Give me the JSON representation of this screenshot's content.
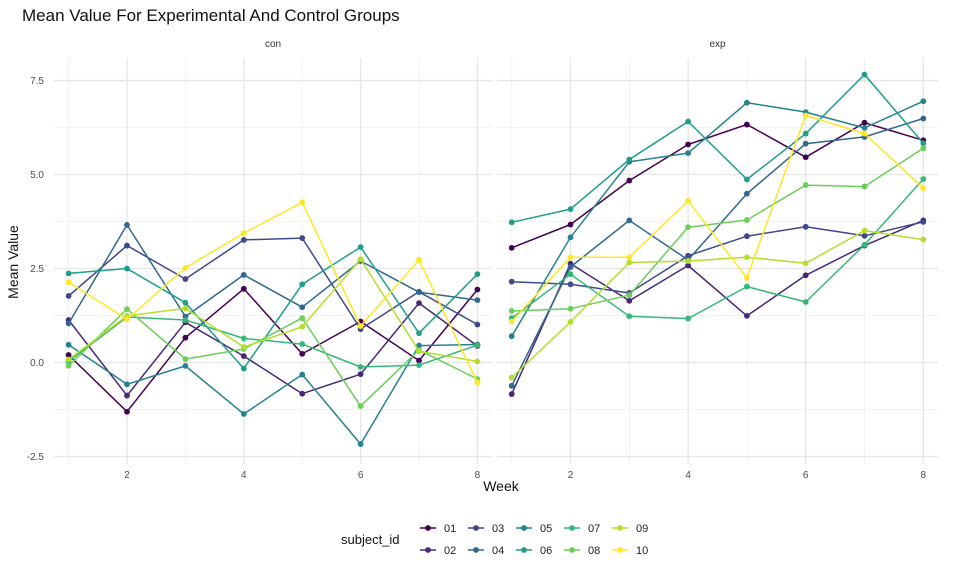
{
  "chart_data": {
    "type": "line",
    "title": "Mean Value For Experimental And Control Groups",
    "xlabel": "Week",
    "ylabel": "Mean Value",
    "xlim": [
      0.75,
      8.25
    ],
    "ylim": [
      -2.7,
      8.1
    ],
    "x_ticks": [
      2,
      4,
      6,
      8
    ],
    "y_ticks": [
      -2.5,
      0.0,
      2.5,
      5.0,
      7.5
    ],
    "y_tick_labels": [
      "-2.5",
      "0.0",
      "2.5",
      "5.0",
      "7.5"
    ],
    "x": [
      1,
      2,
      3,
      4,
      5,
      6,
      7,
      8
    ],
    "grid": true,
    "legend_title": "subject_id",
    "legend_position": "bottom",
    "facets": [
      {
        "label": "con",
        "series": [
          {
            "name": "01",
            "color": "#440154",
            "values": [
              0.2,
              -1.31,
              0.66,
              1.96,
              0.23,
              1.09,
              0.05,
              1.94
            ]
          },
          {
            "name": "02",
            "color": "#482878",
            "values": [
              1.13,
              -0.88,
              1.07,
              0.17,
              -0.83,
              -0.31,
              1.58,
              0.44
            ]
          },
          {
            "name": "03",
            "color": "#3E4A89",
            "values": [
              1.77,
              3.11,
              2.22,
              3.26,
              3.31,
              0.89,
              1.88,
              1.01
            ]
          },
          {
            "name": "04",
            "color": "#31688E",
            "values": [
              1.04,
              3.66,
              1.22,
              2.33,
              1.47,
              2.7,
              1.87,
              1.66
            ]
          },
          {
            "name": "05",
            "color": "#26828E",
            "values": [
              0.47,
              -0.58,
              -0.09,
              -1.37,
              -0.32,
              -2.17,
              0.45,
              0.48
            ]
          },
          {
            "name": "06",
            "color": "#1F9E89",
            "values": [
              2.37,
              2.5,
              1.59,
              -0.16,
              2.08,
              3.07,
              0.78,
              2.35
            ]
          },
          {
            "name": "07",
            "color": "#35B779",
            "values": [
              0.03,
              1.21,
              1.13,
              0.64,
              0.49,
              -0.12,
              -0.07,
              0.46
            ]
          },
          {
            "name": "08",
            "color": "#6DCD59",
            "values": [
              -0.09,
              1.42,
              0.09,
              0.36,
              1.18,
              -1.16,
              0.33,
              -0.44
            ]
          },
          {
            "name": "09",
            "color": "#B4DE2C",
            "values": [
              0.08,
              1.24,
              1.44,
              0.41,
              0.95,
              2.75,
              0.3,
              0.03
            ]
          },
          {
            "name": "10",
            "color": "#FDE725",
            "values": [
              2.14,
              1.15,
              2.52,
              3.44,
              4.26,
              0.97,
              2.73,
              -0.53
            ]
          }
        ]
      },
      {
        "label": "exp",
        "series": [
          {
            "name": "01",
            "color": "#440154",
            "values": [
              3.05,
              3.67,
              4.84,
              5.8,
              6.33,
              5.46,
              6.38,
              5.91
            ]
          },
          {
            "name": "02",
            "color": "#482878",
            "values": [
              -0.84,
              2.63,
              1.64,
              2.58,
              1.24,
              2.32,
              3.11,
              3.78
            ]
          },
          {
            "name": "03",
            "color": "#3E4A89",
            "values": [
              2.15,
              2.08,
              1.85,
              2.84,
              3.36,
              3.61,
              3.37,
              3.74
            ]
          },
          {
            "name": "04",
            "color": "#31688E",
            "values": [
              -0.62,
              2.54,
              3.78,
              2.73,
              4.49,
              5.82,
              6.0,
              6.49
            ]
          },
          {
            "name": "05",
            "color": "#26828E",
            "values": [
              0.7,
              3.33,
              5.34,
              5.57,
              6.91,
              6.66,
              6.24,
              6.95
            ]
          },
          {
            "name": "06",
            "color": "#1F9E89",
            "values": [
              3.73,
              4.08,
              5.4,
              6.41,
              4.87,
              6.09,
              7.66,
              5.83
            ]
          },
          {
            "name": "07",
            "color": "#35B779",
            "values": [
              1.18,
              2.35,
              1.23,
              1.17,
              2.02,
              1.61,
              3.13,
              4.88
            ]
          },
          {
            "name": "08",
            "color": "#6DCD59",
            "values": [
              1.37,
              1.43,
              1.79,
              3.6,
              3.79,
              4.72,
              4.68,
              5.7
            ]
          },
          {
            "name": "09",
            "color": "#B4DE2C",
            "values": [
              -0.4,
              1.08,
              2.66,
              2.7,
              2.8,
              2.64,
              3.51,
              3.27
            ]
          },
          {
            "name": "10",
            "color": "#FDE725",
            "values": [
              1.09,
              2.8,
              2.8,
              4.3,
              2.25,
              6.57,
              6.09,
              4.64
            ]
          }
        ]
      }
    ]
  }
}
